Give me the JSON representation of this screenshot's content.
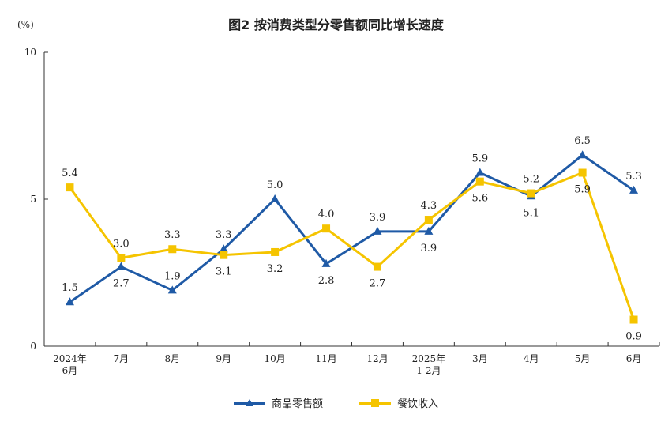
{
  "chart_data": {
    "type": "line",
    "title": "图2  按消费类型分零售额同比增长速度",
    "unit_label": "(%)",
    "ylim": [
      0,
      10
    ],
    "yticks": [
      "0",
      "5",
      "10"
    ],
    "categories": [
      "2024年\n6月",
      "7月",
      "8月",
      "9月",
      "10月",
      "11月",
      "12月",
      "2025年\n1-2月",
      "3月",
      "4月",
      "5月",
      "6月"
    ],
    "series": [
      {
        "name": "商品零售额",
        "color": "#1f5aa6",
        "marker": "triangle",
        "values": [
          1.5,
          2.7,
          1.9,
          3.3,
          5.0,
          2.8,
          3.9,
          3.9,
          5.9,
          5.1,
          6.5,
          5.3
        ],
        "labels": [
          "1.5",
          "2.7",
          "1.9",
          "3.3",
          "5.0",
          "2.8",
          "3.9",
          "3.9",
          "5.9",
          "5.1",
          "6.5",
          "5.3"
        ],
        "label_pos": [
          "above",
          "below",
          "above",
          "above",
          "above",
          "below",
          "above",
          "below",
          "above",
          "below",
          "above",
          "above"
        ]
      },
      {
        "name": "餐饮收入",
        "color": "#f5c400",
        "marker": "square",
        "values": [
          5.4,
          3.0,
          3.3,
          3.1,
          3.2,
          4.0,
          2.7,
          4.3,
          5.6,
          5.2,
          5.9,
          0.9
        ],
        "labels": [
          "5.4",
          "3.0",
          "3.3",
          "3.1",
          "3.2",
          "4.0",
          "2.7",
          "4.3",
          "5.6",
          "5.2",
          "5.9",
          "0.9"
        ],
        "label_pos": [
          "above",
          "above",
          "above",
          "below",
          "below",
          "above",
          "below",
          "above",
          "below",
          "above",
          "below",
          "below"
        ]
      }
    ]
  }
}
